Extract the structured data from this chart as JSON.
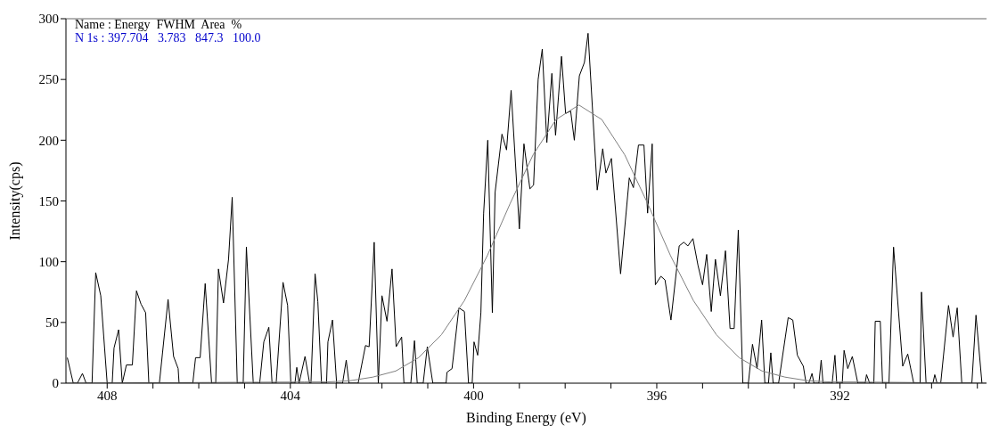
{
  "chart_data": {
    "type": "line",
    "xlabel": "Binding Energy (eV)",
    "ylabel": "Intensity(cps)",
    "annotations": [
      "Name : Energy  FWHM  Area  %",
      "N 1s : 397.704   3.783   847.3   100.0"
    ],
    "xlim": [
      408.9,
      388.8
    ],
    "ylim": [
      0,
      300
    ],
    "xticks": [
      408,
      {
        "value": 407,
        "label": null
      },
      {
        "value": 406,
        "label": null
      },
      {
        "value": 405,
        "label": null
      },
      404,
      {
        "value": 403,
        "label": null
      },
      {
        "value": 402,
        "label": null
      },
      {
        "value": 401,
        "label": null
      },
      400,
      {
        "value": 399,
        "label": null
      },
      {
        "value": 398,
        "label": null
      },
      {
        "value": 397,
        "label": null
      },
      396,
      {
        "value": 395,
        "label": null
      },
      {
        "value": 394,
        "label": null
      },
      {
        "value": 393,
        "label": null
      },
      392,
      {
        "value": 391,
        "label": null
      },
      {
        "value": 390,
        "label": null
      },
      {
        "value": 389,
        "label": null
      }
    ],
    "yticks": [
      0,
      50,
      100,
      150,
      200,
      250,
      300
    ],
    "marker": "none",
    "line_style": "solid",
    "series": [
      {
        "color": "#000000",
        "x": [
          408.87,
          408.74,
          408.65,
          408.54,
          408.46,
          408.33,
          408.25,
          408.14,
          408.0,
          407.89,
          407.85,
          407.75,
          407.67,
          407.58,
          407.45,
          407.36,
          407.26,
          407.16,
          407.09,
          406.86,
          406.67,
          406.55,
          406.45,
          406.43,
          406.13,
          406.07,
          405.97,
          405.86,
          405.72,
          405.63,
          405.57,
          405.46,
          405.35,
          405.27,
          405.16,
          405.03,
          404.96,
          404.81,
          404.67,
          404.58,
          404.47,
          404.4,
          404.31,
          404.16,
          404.06,
          403.99,
          403.9,
          403.86,
          403.81,
          403.68,
          403.58,
          403.55,
          403.46,
          403.4,
          403.32,
          403.21,
          403.18,
          403.08,
          402.99,
          402.86,
          402.78,
          402.72,
          402.52,
          402.36,
          402.28,
          402.17,
          402.08,
          402.0,
          401.89,
          401.78,
          401.69,
          401.57,
          401.52,
          401.37,
          401.29,
          401.23,
          401.1,
          401.01,
          400.89,
          400.6,
          400.58,
          400.47,
          400.32,
          400.2,
          400.11,
          400.03,
          399.99,
          399.91,
          399.84,
          399.78,
          399.69,
          399.59,
          399.53,
          399.38,
          399.28,
          399.18,
          399.0,
          398.9,
          398.77,
          398.69,
          398.59,
          398.5,
          398.4,
          398.29,
          398.21,
          398.08,
          397.99,
          397.88,
          397.8,
          397.69,
          397.58,
          397.5,
          397.3,
          397.18,
          397.11,
          396.99,
          396.79,
          396.6,
          396.51,
          396.4,
          396.28,
          396.2,
          396.1,
          396.03,
          395.91,
          395.82,
          395.69,
          395.51,
          395.41,
          395.32,
          395.21,
          395.1,
          395.0,
          394.91,
          394.81,
          394.72,
          394.61,
          394.5,
          394.4,
          394.31,
          394.22,
          394.12,
          394.0,
          393.91,
          393.81,
          393.71,
          393.64,
          393.56,
          393.51,
          393.46,
          393.34,
          393.13,
          393.03,
          392.93,
          392.8,
          392.74,
          392.68,
          392.61,
          392.57,
          392.46,
          392.41,
          392.37,
          392.17,
          392.11,
          392.07,
          391.95,
          391.91,
          391.83,
          391.73,
          391.61,
          391.45,
          391.42,
          391.35,
          391.26,
          391.23,
          391.12,
          391.07,
          390.93,
          390.83,
          390.63,
          390.52,
          390.39,
          390.25,
          390.22,
          390.12,
          389.97,
          389.93,
          389.88,
          389.8,
          389.63,
          389.53,
          389.44,
          389.34,
          389.12,
          389.03,
          388.9
        ],
        "values": [
          21,
          0,
          0,
          8,
          0,
          0,
          91,
          72,
          0,
          0,
          29,
          44,
          0,
          15,
          15,
          76,
          65,
          58,
          0,
          0,
          69,
          22,
          12,
          0,
          0,
          21,
          21,
          82,
          0,
          0,
          94,
          66,
          102,
          153,
          0,
          0,
          112,
          0,
          0,
          34,
          46,
          0,
          0,
          83,
          64,
          0,
          0,
          13,
          0,
          22,
          0,
          0,
          90,
          67,
          0,
          0,
          34,
          52,
          0,
          0,
          19,
          0,
          0,
          31,
          30,
          116,
          0,
          72,
          51,
          94,
          30,
          38,
          0,
          0,
          35,
          0,
          0,
          30,
          0,
          0,
          9,
          12,
          62,
          59,
          0,
          0,
          34,
          23,
          58,
          140,
          200,
          58,
          157,
          205,
          192,
          241,
          127,
          197,
          160,
          163,
          250,
          275,
          198,
          255,
          204,
          269,
          222,
          224,
          200,
          253,
          264,
          288,
          159,
          193,
          173,
          185,
          90,
          169,
          161,
          196,
          196,
          140,
          197,
          81,
          88,
          85,
          52,
          113,
          116,
          113,
          119,
          97,
          81,
          106,
          59,
          102,
          72,
          109,
          45,
          45,
          126,
          0,
          0,
          32,
          12,
          52,
          0,
          0,
          25,
          0,
          0,
          54,
          52,
          23,
          14,
          0,
          0,
          8,
          0,
          0,
          19,
          0,
          0,
          23,
          0,
          0,
          27,
          12,
          22,
          0,
          0,
          7,
          0,
          0,
          51,
          51,
          0,
          0,
          112,
          14,
          24,
          0,
          0,
          75,
          0,
          0,
          7,
          0,
          0,
          64,
          38,
          62,
          0,
          0,
          56,
          0
        ]
      },
      {
        "color": "#808080",
        "x": [
          408.9,
          403.7,
          403.2,
          402.7,
          402.2,
          401.7,
          401.2,
          400.7,
          400.2,
          399.7,
          399.2,
          398.7,
          398.2,
          397.7,
          397.2,
          396.7,
          396.2,
          395.7,
          395.2,
          394.7,
          394.2,
          393.7,
          393.2,
          392.7,
          392.2,
          391.7,
          388.8
        ],
        "values": [
          0,
          1,
          1,
          2,
          5,
          10,
          21,
          40,
          68,
          105,
          148,
          188,
          217,
          229,
          217,
          188,
          148,
          105,
          68,
          40,
          21,
          10,
          5,
          2,
          1,
          1,
          0
        ]
      }
    ]
  }
}
